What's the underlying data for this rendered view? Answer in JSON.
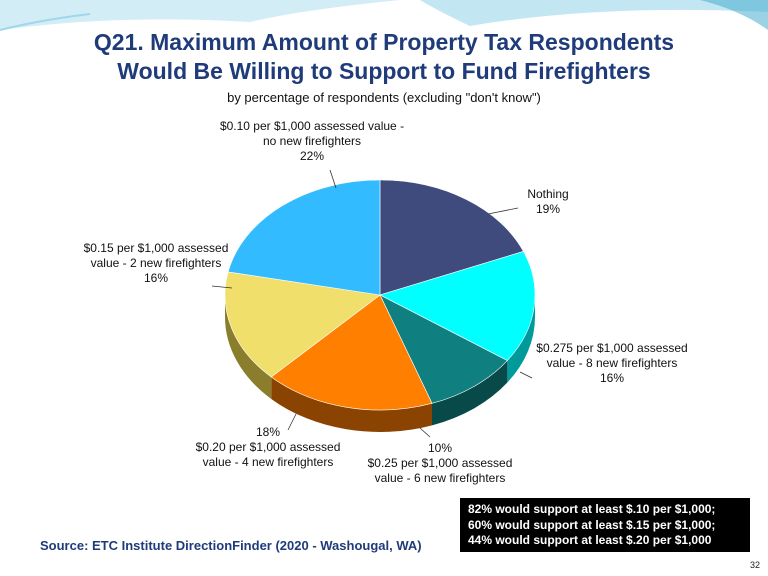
{
  "slide": {
    "title_line1": "Q21. Maximum Amount of Property Tax Respondents",
    "title_line2": "Would Be Willing to Support to Fund Firefighters",
    "subtitle": "by percentage of respondents (excluding \"don't know\")",
    "source": "Source:  ETC Institute DirectionFinder (2020 - Washougal, WA)",
    "note_lines": [
      "82% would support at least $.10 per $1,000;",
      "60% would support at least $.15 per $1,000;",
      "44% would support at least $.20 per $1,000"
    ],
    "page_number": "32",
    "colors": {
      "title": "#1f3b7a",
      "decor": "#8fd3e8"
    }
  },
  "chart_data": {
    "type": "pie",
    "title": "Q21. Maximum Amount of Property Tax Respondents Would Be Willing to Support to Fund Firefighters",
    "slices": [
      {
        "label_lines": [
          "Nothing"
        ],
        "value": 19,
        "value_label": "19%",
        "color": "#3f4b7c",
        "side": "#262e4c"
      },
      {
        "label_lines": [
          "$0.275 per $1,000 assessed",
          "value - 8 new firefighters"
        ],
        "value": 16,
        "value_label": "16%",
        "color": "#00ffff",
        "side": "#009a9a"
      },
      {
        "label_lines": [
          "$0.25 per $1,000 assessed",
          "value - 6 new firefighters"
        ],
        "value": 10,
        "value_label": "10%",
        "color": "#0f7f7f",
        "side": "#084a4a"
      },
      {
        "label_lines": [
          "$0.20 per $1,000 assessed",
          "value - 4 new firefighters"
        ],
        "value": 18,
        "value_label": "18%",
        "color": "#ff8000",
        "side": "#8a4300"
      },
      {
        "label_lines": [
          "$0.15 per $1,000 assessed",
          "value - 2 new firefighters"
        ],
        "value": 16,
        "value_label": "16%",
        "color": "#f0df6a",
        "side": "#8a7d2c"
      },
      {
        "label_lines": [
          "$0.10 per $1,000 assessed value -",
          "no new firefighters"
        ],
        "value": 22,
        "value_label": "22%",
        "color": "#33bbff",
        "side": "#1a6a90"
      }
    ],
    "start_angle_deg": -90,
    "legend": "none (callout labels)"
  }
}
